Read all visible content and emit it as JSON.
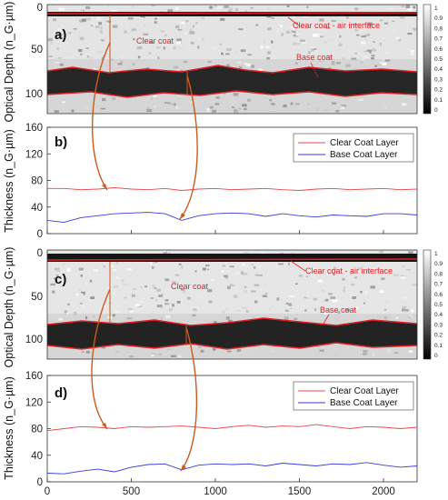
{
  "panels": [
    {
      "id": "a",
      "label": "a)",
      "ylabel": "Optical Depth (n_G·µm)",
      "yticks": [
        "0",
        "50",
        "100"
      ],
      "annotations": [
        "Clear coat",
        "Clear coat - air interface",
        "Base coat"
      ],
      "colorbar": [
        "1",
        "0.9",
        "0.8",
        "0.7",
        "0.6",
        "0.5",
        "0.4",
        "0.3",
        "0.2",
        "0.1",
        "0"
      ]
    },
    {
      "id": "c",
      "label": "c)",
      "ylabel": "Optical Depth (n_G·µm)",
      "yticks": [
        "0",
        "50",
        "100"
      ],
      "annotations": [
        "Clear coat",
        "Clear coat - air interface",
        "Base coat"
      ],
      "colorbar": [
        "1",
        "0.9",
        "0.8",
        "0.7",
        "0.6",
        "0.5",
        "0.4",
        "0.3",
        "0.2",
        "0.1",
        "0"
      ]
    }
  ],
  "chart_data": [
    {
      "type": "line",
      "panel": "b)",
      "ylabel": "Thickness (n_G·µm)",
      "ylim": [
        0,
        160
      ],
      "yticks": [
        "0",
        "40",
        "80",
        "120",
        "160"
      ],
      "xlim": [
        0,
        2200
      ],
      "legend": "top-right",
      "series": [
        {
          "name": "Clear Coat Layer",
          "color": "#e8474d",
          "x": [
            0,
            100,
            200,
            300,
            400,
            500,
            600,
            700,
            800,
            900,
            1000,
            1100,
            1200,
            1300,
            1400,
            1500,
            1600,
            1700,
            1800,
            1900,
            2000,
            2100,
            2200
          ],
          "values": [
            68,
            68,
            66,
            67,
            69,
            67,
            66,
            68,
            65,
            67,
            68,
            66,
            67,
            68,
            66,
            65,
            67,
            68,
            66,
            67,
            68,
            66,
            67
          ]
        },
        {
          "name": "Base Coat Layer",
          "color": "#3a3adf",
          "x": [
            0,
            100,
            200,
            300,
            400,
            500,
            600,
            700,
            800,
            900,
            1000,
            1100,
            1200,
            1300,
            1400,
            1500,
            1600,
            1700,
            1800,
            1900,
            2000,
            2100,
            2200
          ],
          "values": [
            20,
            17,
            24,
            27,
            30,
            31,
            32,
            30,
            20,
            27,
            30,
            31,
            30,
            26,
            30,
            27,
            25,
            28,
            27,
            26,
            30,
            30,
            28
          ]
        }
      ]
    },
    {
      "type": "line",
      "panel": "d)",
      "ylabel": "Thickness (n_G·µm)",
      "ylim": [
        0,
        160
      ],
      "yticks": [
        "0",
        "40",
        "80",
        "120",
        "160"
      ],
      "xlim": [
        0,
        2200
      ],
      "xticks": [
        "0",
        "500",
        "1000",
        "1500",
        "2000"
      ],
      "legend": "top-right",
      "series": [
        {
          "name": "Clear Coat Layer",
          "color": "#e8474d",
          "x": [
            0,
            100,
            200,
            300,
            400,
            500,
            600,
            700,
            800,
            900,
            1000,
            1100,
            1200,
            1300,
            1400,
            1500,
            1600,
            1700,
            1800,
            1900,
            2000,
            2100,
            2200
          ],
          "values": [
            77,
            80,
            83,
            82,
            80,
            83,
            82,
            83,
            84,
            82,
            80,
            83,
            85,
            82,
            84,
            83,
            86,
            83,
            80,
            83,
            82,
            80,
            82
          ]
        },
        {
          "name": "Base Coat Layer",
          "color": "#3a3adf",
          "x": [
            0,
            100,
            200,
            300,
            400,
            500,
            600,
            700,
            800,
            900,
            1000,
            1100,
            1200,
            1300,
            1400,
            1500,
            1600,
            1700,
            1800,
            1900,
            2000,
            2100,
            2200
          ],
          "values": [
            13,
            12,
            16,
            19,
            15,
            22,
            26,
            27,
            18,
            25,
            27,
            26,
            27,
            24,
            28,
            26,
            24,
            27,
            26,
            29,
            25,
            22,
            24
          ]
        }
      ]
    }
  ]
}
